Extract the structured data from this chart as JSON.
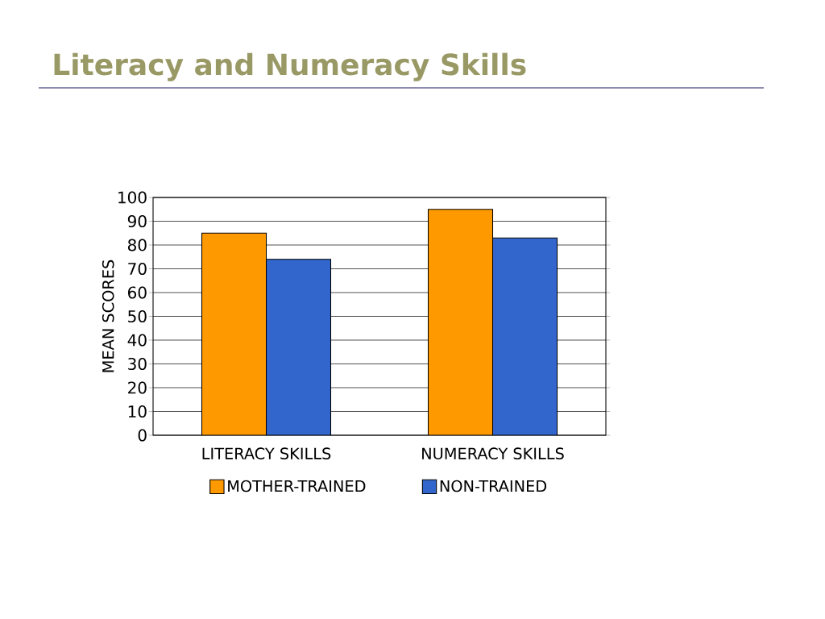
{
  "chart_data": {
    "type": "bar",
    "title": "Literacy and Numeracy Skills",
    "ylabel": "MEAN SCORES",
    "categories": [
      "LITERACY SKILLS",
      "NUMERACY SKILLS"
    ],
    "series": [
      {
        "name": "MOTHER-TRAINED",
        "color": "#ff9900",
        "values": [
          85,
          95
        ]
      },
      {
        "name": "NON-TRAINED",
        "color": "#3366cc",
        "values": [
          74,
          83
        ]
      }
    ],
    "ylim": [
      0,
      100
    ],
    "yticks": [
      0,
      10,
      20,
      30,
      40,
      50,
      60,
      70,
      80,
      90,
      100
    ],
    "grid": "y",
    "legend": "bottom"
  }
}
